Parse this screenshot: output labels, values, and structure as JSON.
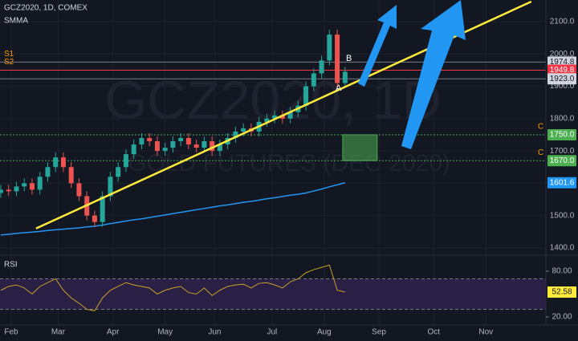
{
  "chart_data": {
    "type": "candlestick",
    "title": "GCZ2020, 1D, COMEX",
    "watermark": [
      "GCZ2020, 1D",
      "GOLD FUTURES (DEC 2020)"
    ],
    "up_color": "#26a69a",
    "down_color": "#ef5350",
    "x": [
      0,
      3,
      6,
      9,
      12,
      15,
      18,
      21,
      24,
      27,
      30,
      33,
      36,
      39,
      42,
      45,
      48,
      51,
      54,
      57,
      60,
      63,
      66,
      69,
      72,
      75,
      78,
      81,
      84,
      87,
      90,
      93,
      96,
      99,
      102,
      105,
      108,
      111,
      114,
      117,
      120,
      123,
      126,
      129,
      132
    ],
    "open": [
      1570,
      1580,
      1575,
      1590,
      1600,
      1580,
      1620,
      1650,
      1680,
      1650,
      1600,
      1560,
      1500,
      1480,
      1560,
      1620,
      1650,
      1690,
      1720,
      1740,
      1730,
      1700,
      1710,
      1730,
      1740,
      1720,
      1710,
      1730,
      1700,
      1720,
      1740,
      1760,
      1770,
      1760,
      1790,
      1800,
      1810,
      1800,
      1820,
      1840,
      1900,
      1940,
      1980,
      2060,
      1910
    ],
    "high": [
      1595,
      1595,
      1605,
      1615,
      1615,
      1635,
      1665,
      1695,
      1695,
      1665,
      1615,
      1575,
      1515,
      1575,
      1635,
      1665,
      1705,
      1735,
      1755,
      1755,
      1745,
      1725,
      1745,
      1755,
      1755,
      1735,
      1745,
      1745,
      1735,
      1755,
      1775,
      1785,
      1785,
      1805,
      1815,
      1825,
      1825,
      1835,
      1855,
      1915,
      1955,
      1995,
      2075,
      2075,
      1960
    ],
    "low": [
      1555,
      1560,
      1560,
      1575,
      1565,
      1565,
      1605,
      1635,
      1635,
      1585,
      1545,
      1485,
      1465,
      1465,
      1545,
      1605,
      1635,
      1675,
      1705,
      1715,
      1685,
      1685,
      1695,
      1715,
      1705,
      1695,
      1695,
      1685,
      1685,
      1705,
      1725,
      1745,
      1745,
      1745,
      1775,
      1785,
      1785,
      1785,
      1805,
      1825,
      1885,
      1925,
      1965,
      1895,
      1895
    ],
    "close": [
      1580,
      1575,
      1590,
      1600,
      1580,
      1620,
      1650,
      1680,
      1650,
      1600,
      1560,
      1500,
      1480,
      1560,
      1620,
      1650,
      1690,
      1720,
      1740,
      1730,
      1700,
      1710,
      1730,
      1740,
      1720,
      1710,
      1730,
      1700,
      1720,
      1740,
      1760,
      1770,
      1760,
      1790,
      1800,
      1810,
      1800,
      1820,
      1840,
      1900,
      1940,
      1980,
      2060,
      1910,
      1945
    ],
    "smma": {
      "name": "SMMA",
      "color": "#2196f3",
      "values": [
        1440,
        1442,
        1445,
        1447,
        1449,
        1451,
        1454,
        1456,
        1458,
        1460,
        1462,
        1465,
        1467,
        1471,
        1475,
        1479,
        1483,
        1487,
        1490,
        1494,
        1498,
        1502,
        1506,
        1510,
        1514,
        1518,
        1522,
        1526,
        1530,
        1533,
        1537,
        1541,
        1544,
        1548,
        1552,
        1555,
        1559,
        1563,
        1566,
        1570,
        1576,
        1582,
        1589,
        1595,
        1601.6
      ]
    },
    "xlim": [
      -0.3,
      209
    ],
    "xticks": [
      {
        "value": 4,
        "label": "Feb"
      },
      {
        "value": 22,
        "label": "Mar"
      },
      {
        "value": 43,
        "label": "Apr"
      },
      {
        "value": 63,
        "label": "May"
      },
      {
        "value": 82,
        "label": "Jun"
      },
      {
        "value": 104,
        "label": "Jul"
      },
      {
        "value": 124,
        "label": "Aug"
      },
      {
        "value": 145,
        "label": "Sep"
      },
      {
        "value": 166,
        "label": "Oct"
      },
      {
        "value": 186,
        "label": "Nov"
      }
    ],
    "ylim": [
      1385,
      2167
    ],
    "yticks": [
      {
        "value": 1400,
        "label": "1400.0"
      },
      {
        "value": 1500,
        "label": "1500.0"
      },
      {
        "value": 1600,
        "label": "1600.0"
      },
      {
        "value": 1700,
        "label": "1700.0"
      },
      {
        "value": 1800,
        "label": "1800.0"
      },
      {
        "value": 1900,
        "label": "1900.0"
      },
      {
        "value": 2000,
        "label": "2000.0"
      },
      {
        "value": 2100,
        "label": "2100.0"
      }
    ],
    "grid": true,
    "levels": [
      {
        "name": "S1",
        "price": {
          "value": 1974.8,
          "label": "1974.8"
        },
        "color": "#787b86",
        "dashed": false
      },
      {
        "name": "S2",
        "price": {
          "value": 1949.8,
          "label": "1949.8"
        },
        "color": "#f23645",
        "dashed": false
      },
      {
        "price": {
          "value": 1923,
          "label": "1923.0"
        },
        "color": "#787b86",
        "dashed": false
      },
      {
        "name": "C",
        "price": {
          "value": 1750,
          "label": "1750.0"
        },
        "color": "#4caf50",
        "dashed": true
      },
      {
        "name": "C",
        "price": {
          "value": 1670,
          "label": "1670.0"
        },
        "color": "#4caf50",
        "dashed": true
      }
    ],
    "box": {
      "x": [
        131.1,
        144.3
      ],
      "y": [
        1670,
        1750
      ],
      "color": "#4caf50"
    },
    "trendline": {
      "x": [
        13.5,
        203.4
      ],
      "y": [
        1460,
        2162
      ],
      "color": "#ffeb3b"
    },
    "points": [
      {
        "text": "A",
        "x": 129.5,
        "y": 1894
      },
      {
        "text": "B",
        "x": 133.5,
        "y": 1986
      }
    ],
    "rsi": {
      "name": "RSI",
      "color": "#c9a227",
      "values": [
        55,
        60,
        62,
        58,
        50,
        60,
        65,
        70,
        55,
        45,
        38,
        30,
        28,
        45,
        55,
        60,
        65,
        62,
        60,
        58,
        50,
        55,
        58,
        60,
        52,
        50,
        58,
        48,
        55,
        60,
        62,
        63,
        58,
        64,
        65,
        62,
        58,
        66,
        70,
        78,
        82,
        85,
        88,
        55,
        52.58
      ],
      "ylim": [
        9.5,
        98.9
      ],
      "yticks": [
        {
          "value": 80,
          "label": "80.00"
        },
        {
          "value": 20,
          "label": "20.00"
        }
      ],
      "bands": [
        70,
        30
      ]
    }
  }
}
